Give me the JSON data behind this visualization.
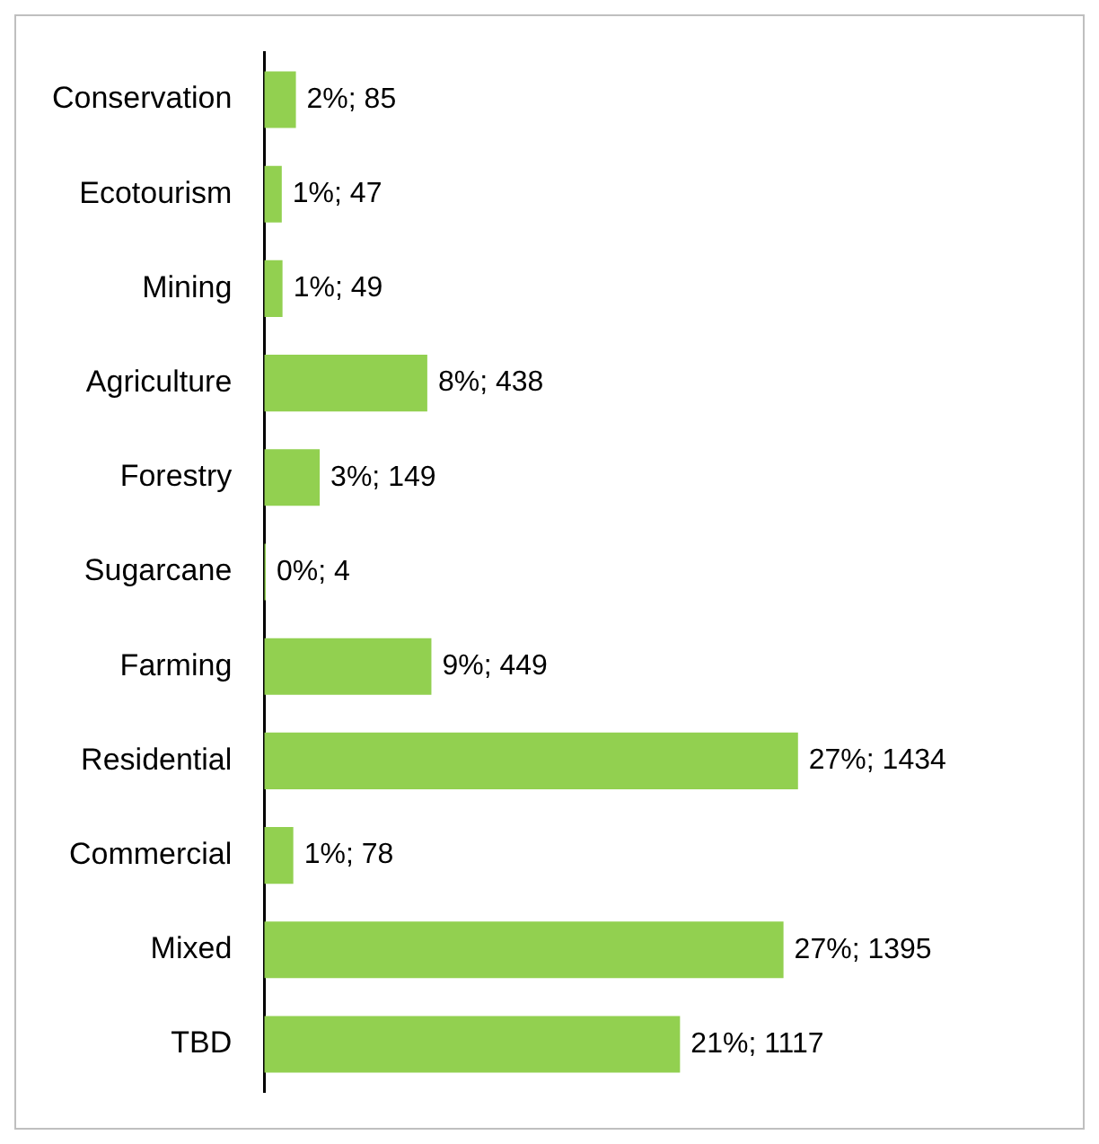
{
  "chart_data": {
    "type": "bar",
    "orientation": "horizontal",
    "categories": [
      "Conservation",
      "Ecotourism",
      "Mining",
      "Agriculture",
      "Forestry",
      "Sugarcane",
      "Farming",
      "Residential",
      "Commercial",
      "Mixed",
      "TBD"
    ],
    "values": [
      85,
      47,
      49,
      438,
      149,
      4,
      449,
      1434,
      78,
      1395,
      1117
    ],
    "value_labels": [
      "2%; 85",
      "1%; 47",
      "1%; 49",
      "8%; 438",
      "3%; 149",
      "0%; 4",
      "9%; 449",
      "27%; 1434",
      "1%; 78",
      "27%; 1395",
      "21%; 1117"
    ],
    "color": "#92d050",
    "legend": false,
    "tick_labels": "y"
  }
}
